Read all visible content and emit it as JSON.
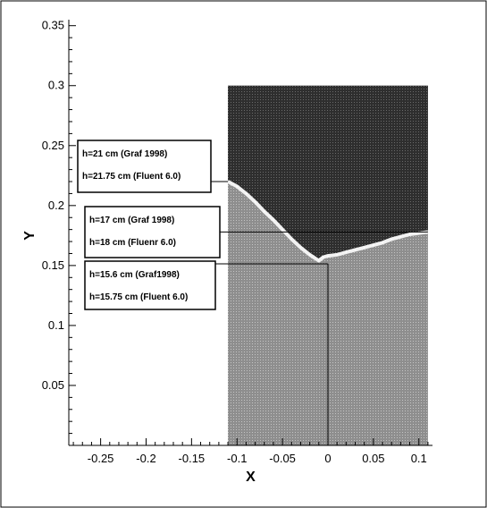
{
  "chart_data": {
    "type": "area",
    "xlabel": "X",
    "ylabel": "Y",
    "xlim": [
      -0.285,
      0.115
    ],
    "ylim": [
      0.0,
      0.355
    ],
    "x_ticks": [
      -0.25,
      -0.2,
      -0.15,
      -0.1,
      -0.05,
      0,
      0.05,
      0.1
    ],
    "x_tick_labels": [
      "-0.25",
      "-0.2",
      "-0.15",
      "-0.1",
      "-0.05",
      "0",
      "0.05",
      "0.1"
    ],
    "y_ticks": [
      0.05,
      0.1,
      0.15,
      0.2,
      0.25,
      0.3,
      0.35
    ],
    "y_tick_labels": [
      "0.05",
      "0.1",
      "0.15",
      "0.2",
      "0.25",
      "0.3",
      "0.35"
    ],
    "x_minor_step": 0.01,
    "y_minor_step": 0.01,
    "grid": false,
    "domain": {
      "x": [
        -0.11,
        0.11
      ],
      "y": [
        0.0,
        0.3
      ]
    },
    "colors": {
      "upper_fluid": "#3a3a3a",
      "lower_fluid": "#9a9a9a",
      "interface": "#f2f2f2"
    },
    "series": [
      {
        "values_xy": [
          [
            -0.11,
            0.22
          ],
          [
            -0.1,
            0.216
          ],
          [
            -0.09,
            0.21
          ],
          [
            -0.08,
            0.203
          ],
          [
            -0.07,
            0.195
          ],
          [
            -0.06,
            0.188
          ],
          [
            -0.05,
            0.18
          ],
          [
            -0.04,
            0.172
          ],
          [
            -0.03,
            0.165
          ],
          [
            -0.02,
            0.159
          ],
          [
            -0.01,
            0.154
          ],
          [
            -0.005,
            0.157
          ],
          [
            0.0,
            0.158
          ],
          [
            0.01,
            0.159
          ],
          [
            0.02,
            0.161
          ],
          [
            0.03,
            0.163
          ],
          [
            0.04,
            0.165
          ],
          [
            0.05,
            0.167
          ],
          [
            0.06,
            0.169
          ],
          [
            0.07,
            0.172
          ],
          [
            0.08,
            0.174
          ],
          [
            0.09,
            0.176
          ],
          [
            0.1,
            0.177
          ],
          [
            0.11,
            0.178
          ]
        ]
      }
    ],
    "annotations": [
      {
        "lines": [
          "h=21 cm  (Graf 1998)",
          "h=21.75 cm   (Fluent 6.0)"
        ],
        "target": [
          -0.11,
          0.22
        ]
      },
      {
        "lines": [
          "h=17 cm  (Graf 1998)",
          "h=18 cm   (Fluenr 6.0)"
        ],
        "target": [
          0.11,
          0.178
        ]
      },
      {
        "lines": [
          "h=15.6 cm  (Graf1998)",
          "h=15.75 cm   (Fluent 6.0)"
        ],
        "target": [
          0.0,
          0.156
        ]
      }
    ]
  }
}
